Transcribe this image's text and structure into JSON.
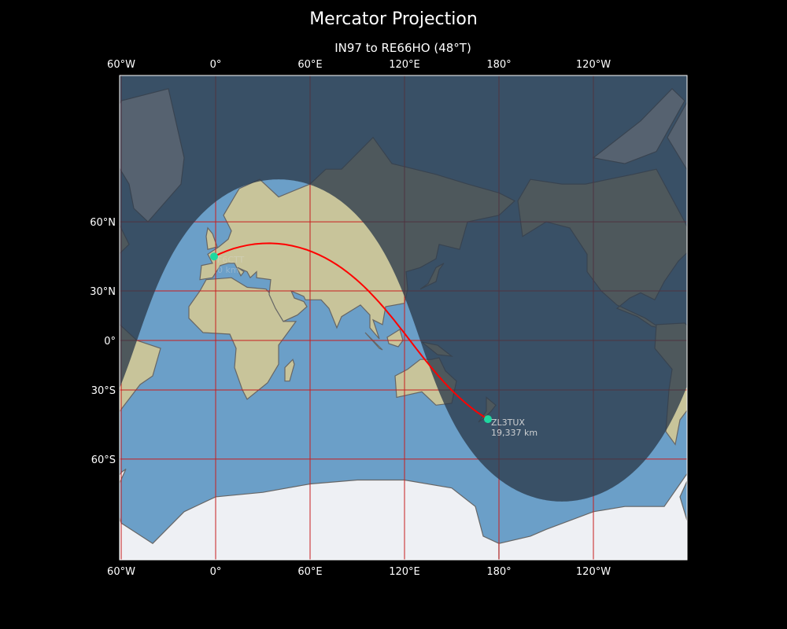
{
  "title": "Mercator Projection",
  "subtitle": "IN97 to RE66HO (48°T)",
  "colors": {
    "ocean": "#6b9fc8",
    "land": "#c8c49a",
    "ice": "#eef0f4",
    "night": "#2b3a4a",
    "grid": "#c81e1e",
    "path": "#ff0000",
    "station": "#1ed8a0"
  },
  "x_ticks": [
    "60°W",
    "0°",
    "60°E",
    "120°E",
    "180°",
    "120°W"
  ],
  "y_ticks": [
    "60°N",
    "30°N",
    "0°",
    "30°S",
    "60°S"
  ],
  "x_tick_lons": [
    -60,
    0,
    60,
    120,
    180,
    240
  ],
  "y_tick_lats": [
    60,
    30,
    0,
    -30,
    -60
  ],
  "lon_range": [
    -61,
    300
  ],
  "lat_range": [
    -79,
    84
  ],
  "subsolar": {
    "lat": -19,
    "lon": 40
  },
  "stations": [
    {
      "call": "F6CTT",
      "distance": "0 km",
      "lat": 47,
      "lon": -1
    },
    {
      "call": "ZL3TUX",
      "distance": "19,337 km",
      "lat": -44.7,
      "lon": 173
    }
  ]
}
